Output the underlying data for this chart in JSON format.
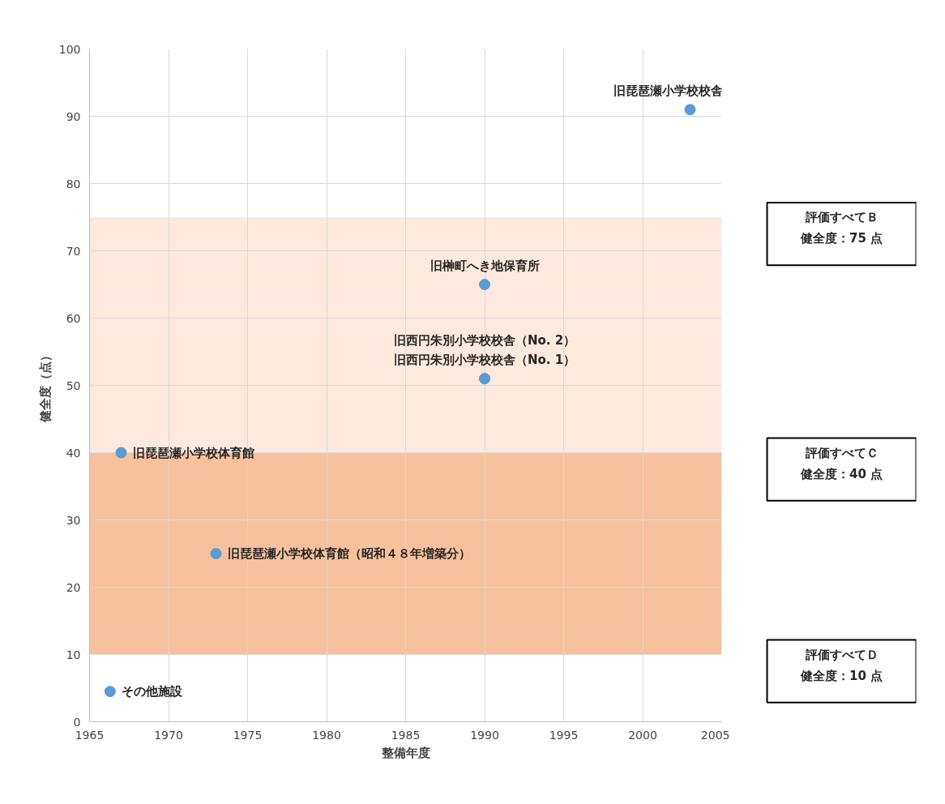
{
  "chart_data": {
    "type": "scatter",
    "xlabel": "整備年度",
    "ylabel": "健全度（点）",
    "x": [
      2003,
      1990,
      1990,
      1990,
      1967,
      1973,
      1966.3
    ],
    "values": [
      91,
      65,
      51,
      51,
      40,
      25,
      4.5
    ],
    "color": "#5b9bd5",
    "marker": "circle",
    "xlim": [
      1965,
      2005
    ],
    "xticks": [
      1965,
      1970,
      1975,
      1980,
      1985,
      1990,
      1995,
      2000,
      2005
    ],
    "ylim": [
      0,
      100
    ],
    "yticks": [
      0,
      10,
      20,
      30,
      40,
      50,
      60,
      70,
      80,
      90,
      100
    ],
    "grid": true,
    "bands": [
      {
        "axis": "y",
        "from": 40,
        "to": 75,
        "color": "#fce4d6"
      },
      {
        "axis": "y",
        "from": 10,
        "to": 40,
        "color": "#f4b183"
      }
    ],
    "annotations": [
      {
        "text": "旧琵琶瀬小学校校舎",
        "x": 2003,
        "y": 91
      },
      {
        "text": "旧榊町へき地保育所",
        "x": 1990,
        "y": 65
      },
      {
        "text": "旧西円朱別小学校校舎（No. 1）",
        "x": 1990,
        "y": 51
      },
      {
        "text": "旧西円朱別小学校校舎（No. 2）",
        "x": 1990,
        "y": 51
      },
      {
        "text": "旧琵琶瀬小学校体育館",
        "x": 1967,
        "y": 40
      },
      {
        "text": "旧琵琶瀬小学校体育館（昭和４８年増築分）",
        "x": 1973,
        "y": 25
      },
      {
        "text": "その他施設",
        "x": 1966.3,
        "y": 4.5
      },
      "評価すべてＢ",
      "健全度：75 点",
      "評価すべてＣ",
      "健全度：40 点",
      "評価すべてＤ",
      "健全度：10 点"
    ]
  }
}
